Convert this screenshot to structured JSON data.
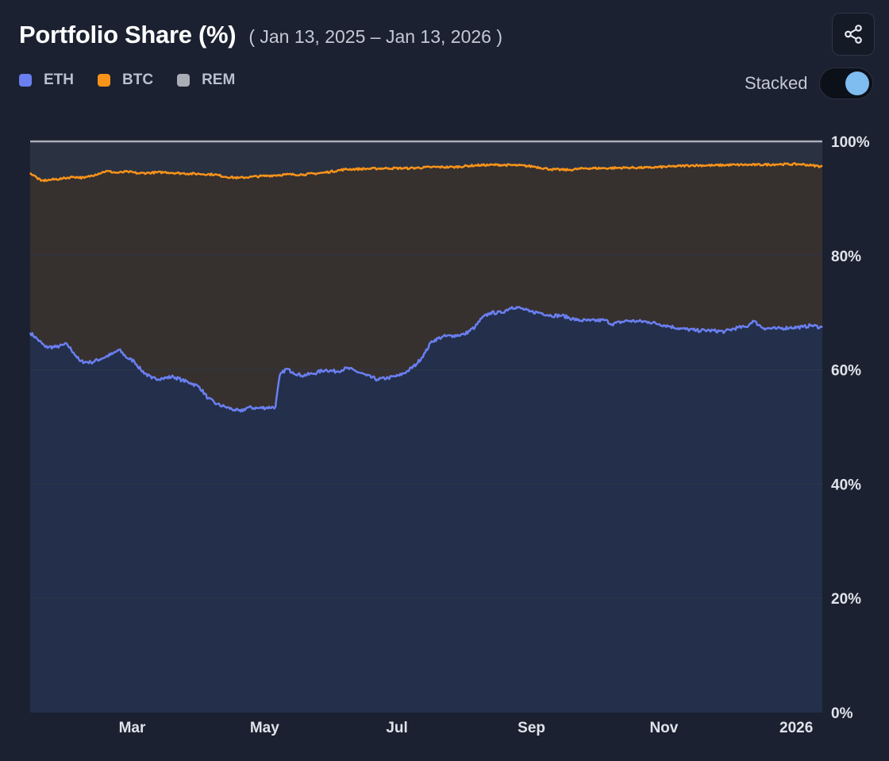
{
  "header": {
    "title": "Portfolio Share (%)",
    "date_range": "( Jan 13, 2025 – Jan 13, 2026 )"
  },
  "legend": [
    {
      "label": "ETH",
      "color": "#6a7ff0"
    },
    {
      "label": "BTC",
      "color": "#f7931a"
    },
    {
      "label": "REM",
      "color": "#a9adb6"
    }
  ],
  "controls": {
    "stacked_label": "Stacked",
    "stacked_on": true,
    "share_icon": "share-icon"
  },
  "colors": {
    "eth_line": "#6a7ff0",
    "btc_line": "#f7931a",
    "rem_line": "#a9adb6",
    "eth_fill": "#232f4b",
    "btc_fill": "#36302f",
    "rem_fill": "#2a3242",
    "plot_bg": "#1e2536",
    "grid": "#2f3749"
  },
  "chart_data": {
    "type": "area",
    "stacked": true,
    "title": "Portfolio Share (%)",
    "x_start": "2025-01-13",
    "x_end": "2026-01-13",
    "x_days": 365,
    "x_ticks": [
      {
        "label": "Mar",
        "day": 47
      },
      {
        "label": "May",
        "day": 108
      },
      {
        "label": "Jul",
        "day": 169
      },
      {
        "label": "Sep",
        "day": 231
      },
      {
        "label": "Nov",
        "day": 292
      },
      {
        "label": "2026",
        "day": 353
      }
    ],
    "ylim": [
      0,
      100
    ],
    "y_ticks": [
      {
        "value": 0,
        "label": "0%"
      },
      {
        "value": 20,
        "label": "20%"
      },
      {
        "value": 40,
        "label": "40%"
      },
      {
        "value": 60,
        "label": "60%"
      },
      {
        "value": 80,
        "label": "80%"
      },
      {
        "value": 100,
        "label": "100%"
      }
    ],
    "series": [
      {
        "name": "ETH",
        "comment": "cumulative share at top of ETH band",
        "points": [
          [
            0,
            66.5
          ],
          [
            3,
            65.5
          ],
          [
            7,
            64
          ],
          [
            12,
            64
          ],
          [
            17,
            64.5
          ],
          [
            20,
            63
          ],
          [
            23,
            61.5
          ],
          [
            28,
            61.3
          ],
          [
            33,
            62
          ],
          [
            38,
            62.8
          ],
          [
            41,
            63.5
          ],
          [
            45,
            62
          ],
          [
            48,
            61.5
          ],
          [
            51,
            60
          ],
          [
            56,
            58.5
          ],
          [
            61,
            58.5
          ],
          [
            66,
            58.8
          ],
          [
            70,
            58.2
          ],
          [
            74,
            57.7
          ],
          [
            78,
            57
          ],
          [
            82,
            55
          ],
          [
            86,
            54
          ],
          [
            90,
            53.5
          ],
          [
            94,
            53
          ],
          [
            97,
            52.7
          ],
          [
            100,
            53.4
          ],
          [
            105,
            53.3
          ],
          [
            113,
            53.5
          ],
          [
            115,
            59
          ],
          [
            118,
            60.2
          ],
          [
            121,
            59.6
          ],
          [
            125,
            59
          ],
          [
            130,
            59.3
          ],
          [
            136,
            60
          ],
          [
            141,
            59.7
          ],
          [
            146,
            60.3
          ],
          [
            150,
            59.8
          ],
          [
            155,
            59
          ],
          [
            160,
            58.3
          ],
          [
            165,
            58.6
          ],
          [
            170,
            59
          ],
          [
            174,
            59.8
          ],
          [
            178,
            61
          ],
          [
            182,
            63
          ],
          [
            185,
            65
          ],
          [
            190,
            65.8
          ],
          [
            195,
            66
          ],
          [
            200,
            66.2
          ],
          [
            205,
            67.5
          ],
          [
            208,
            69
          ],
          [
            212,
            70
          ],
          [
            217,
            70
          ],
          [
            222,
            71
          ],
          [
            226,
            70.8
          ],
          [
            230,
            70.2
          ],
          [
            235,
            70
          ],
          [
            240,
            69.5
          ],
          [
            245,
            69.5
          ],
          [
            252,
            68.7
          ],
          [
            258,
            68.6
          ],
          [
            265,
            68.7
          ],
          [
            268,
            68
          ],
          [
            275,
            68.6
          ],
          [
            280,
            68.5
          ],
          [
            285,
            68.4
          ],
          [
            290,
            68
          ],
          [
            295,
            67.6
          ],
          [
            300,
            67.2
          ],
          [
            307,
            66.9
          ],
          [
            313,
            66.9
          ],
          [
            320,
            66.7
          ],
          [
            326,
            67.4
          ],
          [
            330,
            67.5
          ],
          [
            333,
            68.6
          ],
          [
            338,
            67.3
          ],
          [
            344,
            67.2
          ],
          [
            350,
            67.4
          ],
          [
            356,
            67.5
          ],
          [
            360,
            67.8
          ],
          [
            365,
            67.4
          ]
        ]
      },
      {
        "name": "BTC",
        "comment": "cumulative share at top of BTC band",
        "points": [
          [
            0,
            94.5
          ],
          [
            5,
            93.1
          ],
          [
            10,
            93.3
          ],
          [
            15,
            93.5
          ],
          [
            20,
            93.8
          ],
          [
            25,
            93.6
          ],
          [
            30,
            94.2
          ],
          [
            35,
            94.8
          ],
          [
            40,
            94.5
          ],
          [
            45,
            94.7
          ],
          [
            50,
            94.4
          ],
          [
            55,
            94.5
          ],
          [
            62,
            94.6
          ],
          [
            70,
            94.4
          ],
          [
            78,
            94.3
          ],
          [
            85,
            94.2
          ],
          [
            90,
            93.8
          ],
          [
            96,
            93.6
          ],
          [
            102,
            93.8
          ],
          [
            110,
            94
          ],
          [
            118,
            94.2
          ],
          [
            126,
            94.2
          ],
          [
            135,
            94.5
          ],
          [
            145,
            95.1
          ],
          [
            155,
            95.2
          ],
          [
            165,
            95.3
          ],
          [
            175,
            95.3
          ],
          [
            185,
            95.5
          ],
          [
            195,
            95.5
          ],
          [
            205,
            95.8
          ],
          [
            215,
            95.9
          ],
          [
            225,
            95.8
          ],
          [
            232,
            95.6
          ],
          [
            240,
            95.1
          ],
          [
            248,
            95
          ],
          [
            256,
            95.3
          ],
          [
            265,
            95.3
          ],
          [
            275,
            95.4
          ],
          [
            285,
            95.4
          ],
          [
            295,
            95.6
          ],
          [
            305,
            95.8
          ],
          [
            315,
            95.8
          ],
          [
            325,
            95.9
          ],
          [
            335,
            95.9
          ],
          [
            345,
            96
          ],
          [
            355,
            96
          ],
          [
            360,
            95.8
          ],
          [
            365,
            95.6
          ]
        ]
      },
      {
        "name": "REM",
        "comment": "cumulative share at top of REM band",
        "points": [
          [
            0,
            100
          ],
          [
            365,
            100
          ]
        ]
      }
    ]
  }
}
